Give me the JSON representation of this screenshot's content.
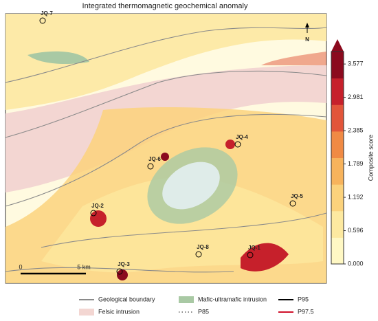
{
  "title": "Integrated thermomagnetic geochemical anomaly",
  "north": "N",
  "scale_bar": {
    "start": "0",
    "end": "5 km"
  },
  "sites": [
    "JQ-7",
    "JQ-6",
    "JQ-4",
    "JQ-2",
    "JQ-5",
    "JQ-8",
    "JQ-1",
    "JQ-3"
  ],
  "colorbar": {
    "label": "Composite score",
    "lim": [
      0,
      3.8
    ],
    "ticks": [
      {
        "value": 0,
        "label": "0.000"
      },
      {
        "value": 0.596,
        "label": "0.596"
      },
      {
        "value": 1.192,
        "label": "1.192"
      },
      {
        "value": 1.789,
        "label": "1.789"
      },
      {
        "value": 2.385,
        "label": "2.385"
      },
      {
        "value": 2.981,
        "label": "2.981"
      },
      {
        "value": 3.577,
        "label": "3.577"
      }
    ],
    "colors": [
      "#fff8c4",
      "#fde9a0",
      "#fbd27c",
      "#f7b35c",
      "#f08a44",
      "#e2553a",
      "#c6202b",
      "#8b0a1e"
    ]
  },
  "legend": [
    {
      "name": "Geological boundary",
      "color": "#8a8a8a",
      "style": "line"
    },
    {
      "name": "Felsic intrusion",
      "color": "#f3d6d2",
      "style": "patch"
    },
    {
      "name": "Mafic-ultramafic intrusion",
      "color": "#a9c9a4",
      "style": "patch"
    },
    {
      "name": "P85",
      "color": "#666666",
      "style": "dotted"
    },
    {
      "name": "P95",
      "color": "#000000",
      "style": "line"
    },
    {
      "name": "P97.5",
      "color": "#d0102a",
      "style": "line"
    }
  ]
}
